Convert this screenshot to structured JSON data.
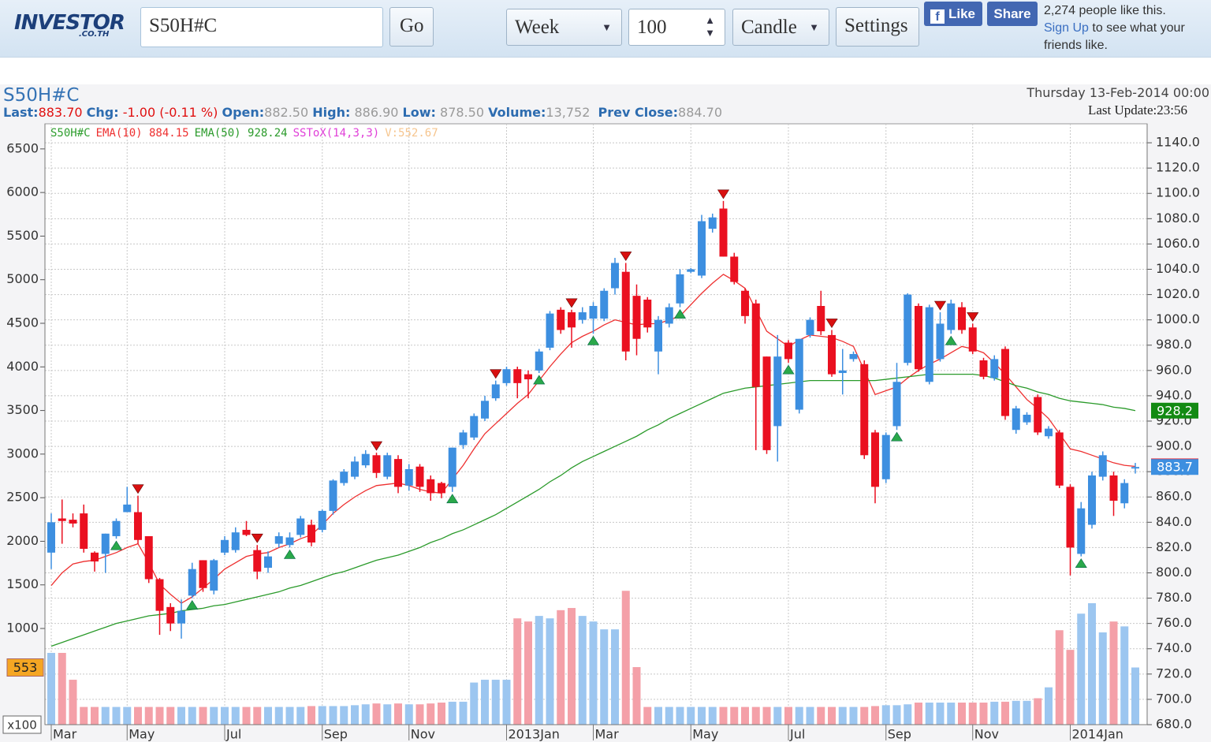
{
  "toolbar": {
    "logo": "INVESTOR",
    "logo_sub": ".CO.TH",
    "symbol": "S50H#C",
    "go": "Go",
    "period": "Week",
    "count": "100",
    "chart_style": "Candle",
    "settings": "Settings",
    "like": "Like",
    "share": "Share",
    "likes_text": "2,274 people like this.",
    "signup": "Sign Up",
    "signup_text": "to see what your friends like."
  },
  "header": {
    "symbol": "S50H#C",
    "last_label": "Last:",
    "last": "883.70",
    "chg_label": "Chg:",
    "chg": "-1.00 (-0.11 %)",
    "open_label": "Open:",
    "open": "882.50",
    "high_label": "High:",
    "high": "886.90",
    "low_label": "Low:",
    "low": "878.50",
    "volume_label": "Volume:",
    "volume": "13,752",
    "prev_label": "Prev Close:",
    "prev": "884.70",
    "date": "Thursday 13-Feb-2014 00:00",
    "update": "Last Update:23:56"
  },
  "chart_data": {
    "type": "candlestick",
    "name": "S50H#C",
    "name_color": "#2e9e2e",
    "categories": [
      "Mar",
      null,
      null,
      null,
      null,
      null,
      null,
      "May",
      null,
      null,
      null,
      null,
      null,
      null,
      null,
      null,
      "Jul",
      null,
      null,
      null,
      null,
      null,
      null,
      null,
      null,
      "Sep",
      null,
      null,
      null,
      null,
      null,
      null,
      null,
      "Nov",
      null,
      null,
      null,
      null,
      null,
      null,
      null,
      null,
      "2013Jan",
      null,
      null,
      null,
      null,
      null,
      null,
      null,
      "Mar",
      null,
      null,
      null,
      null,
      null,
      null,
      null,
      null,
      "May",
      null,
      null,
      null,
      null,
      null,
      null,
      null,
      null,
      "Jul",
      null,
      null,
      null,
      null,
      null,
      null,
      null,
      null,
      "Sep",
      null,
      null,
      null,
      null,
      null,
      null,
      null,
      "Nov",
      null,
      null,
      null,
      null,
      null,
      null,
      null,
      null,
      "2014Jan",
      null,
      null,
      null,
      null,
      null,
      null
    ],
    "open": [
      816,
      843,
      842,
      847,
      816,
      815,
      829,
      848,
      848,
      829,
      795,
      773,
      760,
      782,
      810,
      786,
      816,
      818,
      834,
      818,
      804,
      823,
      822,
      830,
      838,
      834,
      849,
      871,
      876,
      885,
      893,
      876,
      890,
      869,
      884,
      874,
      871,
      868,
      901,
      907,
      922,
      938,
      950,
      961,
      957,
      960,
      978,
      1008,
      1006,
      1000,
      1001,
      1001,
      1025,
      1038,
      1019,
      1016,
      975,
      997,
      1013,
      1038,
      1035,
      1072,
      1088,
      1050,
      1023,
      1013,
      971,
      916,
      982,
      929,
      988,
      1011,
      988,
      958,
      969,
      965,
      911,
      874,
      916,
      966,
      1011,
      951,
      969,
      992,
      1010,
      994,
      968,
      954,
      977,
      913,
      919,
      939,
      908,
      911,
      868,
      815,
      838,
      876,
      877,
      855,
      882.5
    ],
    "high": [
      847,
      858,
      847,
      854,
      817,
      831,
      843,
      868,
      861,
      829,
      796,
      776,
      779,
      808,
      810,
      811,
      829,
      836,
      841,
      822,
      817,
      832,
      832,
      845,
      842,
      850,
      874,
      882,
      892,
      897,
      895,
      895,
      893,
      886,
      886,
      877,
      872,
      899,
      913,
      926,
      940,
      952,
      963,
      963,
      960,
      977,
      1007,
      1010,
      1008,
      1010,
      1014,
      1025,
      1049,
      1045,
      1028,
      1018,
      1003,
      1013,
      1040,
      1041,
      1083,
      1084,
      1094,
      1053,
      1025,
      1016,
      971,
      988,
      984,
      985,
      1002,
      1023,
      992,
      977,
      975,
      968,
      913,
      911,
      966,
      1021,
      1013,
      1012,
      1006,
      1016,
      1014,
      997,
      970,
      972,
      979,
      932,
      927,
      941,
      916,
      913,
      870,
      856,
      880,
      896,
      880,
      874,
      886.9
    ],
    "low": [
      803,
      823,
      836,
      816,
      801,
      800,
      827,
      848,
      823,
      792,
      751,
      754,
      748,
      780,
      785,
      783,
      814,
      816,
      829,
      795,
      800,
      820,
      820,
      828,
      821,
      832,
      846,
      869,
      874,
      883,
      875,
      874,
      863,
      865,
      864,
      857,
      859,
      864,
      898,
      905,
      920,
      936,
      948,
      938,
      938,
      958,
      976,
      989,
      978,
      997,
      989,
      999,
      1020,
      968,
      972,
      990,
      957,
      994,
      1010,
      1037,
      1033,
      1069,
      1050,
      1028,
      997,
      897,
      894,
      888,
      966,
      926,
      986,
      988,
      955,
      941,
      967,
      890,
      855,
      871,
      913,
      964,
      959,
      949,
      967,
      989,
      989,
      973,
      953,
      952,
      921,
      910,
      917,
      909,
      906,
      867,
      798,
      813,
      835,
      873,
      845,
      851,
      878.5
    ],
    "close": [
      840,
      841,
      839,
      819,
      809,
      831,
      841,
      854,
      826,
      795,
      770,
      760,
      770,
      803,
      788,
      810,
      826,
      832,
      830,
      801,
      813,
      829,
      828,
      843,
      824,
      849,
      873,
      880,
      888,
      894,
      879,
      893,
      868,
      882,
      868,
      863,
      863,
      899,
      911,
      924,
      936,
      949,
      961,
      950,
      953,
      975,
      1005,
      992,
      994,
      1006,
      1011,
      1023,
      1045,
      975,
      985,
      994,
      1000,
      1010,
      1036,
      1040,
      1078,
      1081,
      1050,
      1030,
      1003,
      947,
      897,
      971,
      969,
      985,
      1000,
      991,
      957,
      960,
      973,
      893,
      868,
      909,
      951,
      1020,
      961,
      1010,
      997,
      1013,
      992,
      975,
      955,
      969,
      924,
      930,
      925,
      911,
      914,
      869,
      820,
      851,
      877,
      893,
      857,
      871,
      883.7
    ],
    "up_color": "#3d8fe0",
    "down_color": "#ea1020",
    "ema": [
      {
        "name": "EMA(10) 884.15",
        "color": "#ee3030",
        "values": [
          790,
          800,
          807,
          809,
          810,
          813,
          816,
          820,
          823,
          808,
          791,
          783,
          776,
          781,
          788,
          795,
          803,
          808,
          813,
          815,
          816,
          820,
          823,
          827,
          830,
          838,
          847,
          854,
          860,
          865,
          869,
          870,
          871,
          869,
          866,
          864,
          863,
          874,
          885,
          898,
          910,
          918,
          926,
          934,
          941,
          952,
          963,
          973,
          982,
          987,
          991,
          996,
          1000,
          998,
          996,
          997,
          997,
          1000,
          1003,
          1012,
          1021,
          1029,
          1036,
          1031,
          1025,
          1008,
          991,
          985,
          979,
          984,
          988,
          987,
          986,
          983,
          979,
          960,
          941,
          944,
          947,
          954,
          960,
          965,
          969,
          974,
          979,
          977,
          974,
          966,
          957,
          947,
          937,
          930,
          922,
          910,
          898,
          896,
          893,
          890,
          887,
          885,
          884.15
        ]
      },
      {
        "name": "EMA(50) 928.24",
        "color": "#2a9a2a",
        "values": [
          742,
          745,
          748,
          751,
          754,
          757,
          760,
          762,
          764,
          766,
          767,
          768,
          770,
          771,
          772,
          774,
          775,
          777,
          779,
          781,
          783,
          785,
          788,
          790,
          793,
          796,
          799,
          801,
          804,
          807,
          810,
          812,
          814,
          817,
          820,
          824,
          827,
          831,
          834,
          838,
          842,
          846,
          851,
          856,
          861,
          866,
          872,
          877,
          883,
          888,
          892,
          896,
          900,
          904,
          908,
          913,
          917,
          922,
          926,
          930,
          934,
          938,
          942,
          944,
          946,
          947,
          948,
          949,
          950,
          951,
          952,
          952,
          952,
          952,
          952,
          952,
          952,
          953,
          954,
          955,
          956,
          957,
          957,
          957,
          957,
          957,
          956,
          954,
          951,
          948,
          946,
          943,
          941,
          938,
          936,
          935,
          934,
          933,
          931,
          930,
          928.24
        ]
      }
    ],
    "indicator_legend": [
      {
        "name": "SSToX(14,3,3)",
        "color": "#e040d8"
      }
    ],
    "volume": {
      "name": "V:552.67",
      "name_color": "#f6c58e",
      "up_color": "#9cc6f0",
      "down_color": "#f4a0a8",
      "unit_label": "x100",
      "values": [
        720,
        720,
        412,
        100,
        100,
        100,
        100,
        100,
        100,
        100,
        100,
        100,
        100,
        100,
        100,
        100,
        100,
        100,
        100,
        100,
        100,
        100,
        100,
        100,
        110,
        110,
        110,
        110,
        120,
        130,
        140,
        130,
        140,
        130,
        130,
        140,
        150,
        160,
        160,
        380,
        412,
        412,
        412,
        1116,
        1080,
        1144,
        1116,
        1210,
        1235,
        1144,
        1080,
        990,
        990,
        1432,
        557,
        100,
        100,
        100,
        100,
        100,
        100,
        100,
        100,
        100,
        100,
        100,
        100,
        100,
        100,
        100,
        100,
        100,
        100,
        100,
        100,
        100,
        110,
        120,
        120,
        130,
        150,
        150,
        150,
        150,
        150,
        150,
        150,
        160,
        160,
        170,
        170,
        200,
        325,
        980,
        755,
        1170,
        1290,
        955,
        1080,
        1024,
        552.67
      ],
      "ylim": [
        -103,
        6788
      ],
      "yticks": [
        1000,
        1500,
        2000,
        2500,
        3000,
        3500,
        4000,
        4500,
        5000,
        5500,
        6000,
        6500
      ],
      "tag": {
        "value": 552.67,
        "label": "553",
        "color": "#f5a623"
      }
    },
    "ylim": [
      680,
      1155
    ],
    "yticks": [
      {
        "value": 680,
        "label": "680.0"
      },
      {
        "value": 700,
        "label": "700.0"
      },
      {
        "value": 720,
        "label": "720.0"
      },
      {
        "value": 740,
        "label": "740.0"
      },
      {
        "value": 760,
        "label": "760.0"
      },
      {
        "value": 780,
        "label": "780.0"
      },
      {
        "value": 800,
        "label": "800.0"
      },
      {
        "value": 820,
        "label": "820.0"
      },
      {
        "value": 840,
        "label": "840.0"
      },
      {
        "value": 860,
        "label": "860.0"
      },
      {
        "value": 880,
        "label": "880.0"
      },
      {
        "value": 900,
        "label": "900.0"
      },
      {
        "value": 920,
        "label": "920.0"
      },
      {
        "value": 940,
        "label": "940.0"
      },
      {
        "value": 960,
        "label": "960.0"
      },
      {
        "value": 980,
        "label": "980.0"
      },
      {
        "value": 1000,
        "label": "1000.0"
      },
      {
        "value": 1020,
        "label": "1020.0"
      },
      {
        "value": 1040,
        "label": "1040.0"
      },
      {
        "value": 1060,
        "label": "1060.0"
      },
      {
        "value": 1080,
        "label": "1080.0"
      },
      {
        "value": 1100,
        "label": "1100.0"
      },
      {
        "value": 1120,
        "label": "1120.0"
      },
      {
        "value": 1140,
        "label": "1140.0"
      }
    ],
    "tags": [
      {
        "value": 928.24,
        "label": "928.2",
        "color": "#138a13"
      },
      {
        "value": 884.15,
        "label": "884.1",
        "color": "#e81020"
      },
      {
        "value": 883.7,
        "label": "883.7",
        "color": "#3d8fe0"
      }
    ],
    "sell_signals": [
      8,
      19,
      30,
      41,
      48,
      53,
      62,
      72,
      82,
      85
    ],
    "buy_signals": [
      6,
      13,
      22,
      37,
      45,
      50,
      58,
      68,
      78,
      83,
      95
    ],
    "grid": true
  }
}
